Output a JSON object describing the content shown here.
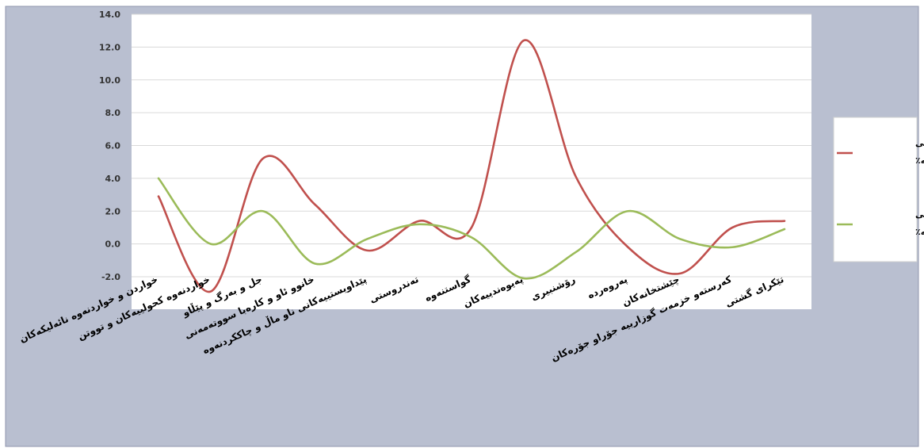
{
  "chart_data": {
    "type": "line",
    "categories": [
      "خواردن و خواردنەوە نائەلیکەکان",
      "خواردنەوە کحولییەکان و تووتن",
      "جل و بەرگ و پێڵاو",
      "خانوو ئاو و کارەبا سووتەمەنی",
      "پێداویستییەکانی ناو ماڵ و چاککردنەوە",
      "تەندروستی",
      "گواستنەوە",
      "پەیوەندییەکان",
      "رۆشنبیری",
      "پەروەردە",
      "چێشتخانەکان",
      "کەرستەو خزمەت گوزارییە جۆراو جۆرەکان",
      "تێکرای گشتی"
    ],
    "series": [
      {
        "name": "تێکرای گۆڕانی ساڵانە٪",
        "color": "#c0504d",
        "values": [
          2.9,
          -2.9,
          5.2,
          2.4,
          -0.4,
          1.4,
          1.0,
          12.4,
          4.1,
          -0.2,
          -1.8,
          1.0,
          1.4
        ]
      },
      {
        "name": "تێکرای گۆڕانی مانگانە٪",
        "color": "#9bbb59",
        "values": [
          4.0,
          0.0,
          2.0,
          -1.2,
          0.3,
          1.2,
          0.4,
          -2.1,
          -0.5,
          2.0,
          0.3,
          -0.2,
          0.9
        ]
      }
    ],
    "ylim": [
      -2.0,
      14.0
    ],
    "yticks": [
      "14.0",
      "12.0",
      "10.0",
      "8.0",
      "6.0",
      "4.0",
      "2.0",
      "0.0",
      "-2.0"
    ],
    "grid": true,
    "legend": "right"
  }
}
